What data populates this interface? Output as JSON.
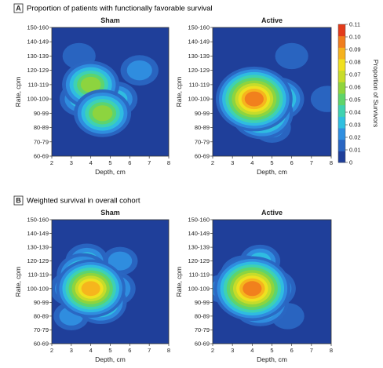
{
  "panels": [
    {
      "letter": "A",
      "title": "Proportion of patients with functionally favorable survival"
    },
    {
      "letter": "B",
      "title": "Weighted survival in overall cohort"
    }
  ],
  "colorbar": {
    "label": "Proportion of Survivors",
    "ticks": [
      "0.11",
      "0.10",
      "0.09",
      "0.08",
      "0.07",
      "0.06",
      "0.05",
      "0.04",
      "0.03",
      "0.02",
      "0.01",
      "0"
    ],
    "colors": [
      "#1f3f9a",
      "#2a66c2",
      "#2f8fe0",
      "#2fbfe0",
      "#3fd2b0",
      "#5fd46a",
      "#8fd43c",
      "#c8dc2a",
      "#f0e020",
      "#f5b21e",
      "#f07d1e",
      "#e33b1a"
    ]
  },
  "chart_data": [
    {
      "type": "heatmap",
      "title": "Sham",
      "xlabel": "Depth, cm",
      "ylabel": "Rate, cpm",
      "x_ticks": [
        "2",
        "3",
        "4",
        "5",
        "6",
        "7",
        "8"
      ],
      "y_ticks": [
        "150-160",
        "140-149",
        "130-139",
        "120-129",
        "110-119",
        "100-109",
        "90-99",
        "80-89",
        "70-79",
        "60-69"
      ],
      "xlim": [
        2,
        8
      ],
      "zlim": [
        0,
        0.11
      ],
      "hotspots": [
        {
          "depth": 4.0,
          "rate": "110-119",
          "value": 0.06
        },
        {
          "depth": 4.6,
          "rate": "90-99",
          "value": 0.06
        },
        {
          "depth": 3.5,
          "rate": "100-109",
          "value": 0.03
        },
        {
          "depth": 5.3,
          "rate": "100-109",
          "value": 0.03
        },
        {
          "depth": 6.5,
          "rate": "120-129",
          "value": 0.02
        },
        {
          "depth": 3.4,
          "rate": "130-139",
          "value": 0.01
        }
      ]
    },
    {
      "type": "heatmap",
      "title": "Active",
      "xlabel": "Depth, cm",
      "ylabel": "Rate, cpm",
      "x_ticks": [
        "2",
        "3",
        "4",
        "5",
        "6",
        "7",
        "8"
      ],
      "y_ticks": [
        "150-160",
        "140-149",
        "130-139",
        "120-129",
        "110-119",
        "100-109",
        "90-99",
        "80-89",
        "70-79",
        "60-69"
      ],
      "xlim": [
        2,
        8
      ],
      "zlim": [
        0,
        0.11
      ],
      "hotspots": [
        {
          "depth": 4.1,
          "rate": "100-109",
          "value": 0.1
        },
        {
          "depth": 4.5,
          "rate": "90-99",
          "value": 0.07
        },
        {
          "depth": 5.3,
          "rate": "100-109",
          "value": 0.05
        },
        {
          "depth": 3.3,
          "rate": "100-109",
          "value": 0.03
        },
        {
          "depth": 4.0,
          "rate": "110-119",
          "value": 0.03
        },
        {
          "depth": 5.0,
          "rate": "80-89",
          "value": 0.02
        },
        {
          "depth": 6.0,
          "rate": "130-139",
          "value": 0.01
        },
        {
          "depth": 7.8,
          "rate": "100-109",
          "value": 0.01
        }
      ]
    },
    {
      "type": "heatmap",
      "title": "Sham",
      "xlabel": "Depth, cm",
      "ylabel": "Rate, cpm",
      "x_ticks": [
        "2",
        "3",
        "4",
        "5",
        "6",
        "7",
        "8"
      ],
      "y_ticks": [
        "150-160",
        "140-149",
        "130-139",
        "120-129",
        "110-119",
        "100-109",
        "90-99",
        "80-89",
        "70-79",
        "60-69"
      ],
      "xlim": [
        2,
        8
      ],
      "zlim": [
        0,
        0.11
      ],
      "hotspots": [
        {
          "depth": 4.0,
          "rate": "100-109",
          "value": 0.085
        },
        {
          "depth": 3.6,
          "rate": "110-119",
          "value": 0.05
        },
        {
          "depth": 4.5,
          "rate": "90-99",
          "value": 0.05
        },
        {
          "depth": 3.0,
          "rate": "100-109",
          "value": 0.03
        },
        {
          "depth": 5.2,
          "rate": "100-109",
          "value": 0.03
        },
        {
          "depth": 3.8,
          "rate": "120-129",
          "value": 0.03
        },
        {
          "depth": 3.0,
          "rate": "80-89",
          "value": 0.015
        },
        {
          "depth": 5.5,
          "rate": "120-129",
          "value": 0.015
        }
      ]
    },
    {
      "type": "heatmap",
      "title": "Active",
      "xlabel": "Depth, cm",
      "ylabel": "Rate, cpm",
      "x_ticks": [
        "2",
        "3",
        "4",
        "5",
        "6",
        "7",
        "8"
      ],
      "y_ticks": [
        "150-160",
        "140-149",
        "130-139",
        "120-129",
        "110-119",
        "100-109",
        "90-99",
        "80-89",
        "70-79",
        "60-69"
      ],
      "xlim": [
        2,
        8
      ],
      "zlim": [
        0,
        0.11
      ],
      "hotspots": [
        {
          "depth": 4.0,
          "rate": "100-109",
          "value": 0.1
        },
        {
          "depth": 4.4,
          "rate": "90-99",
          "value": 0.06
        },
        {
          "depth": 3.6,
          "rate": "110-119",
          "value": 0.04
        },
        {
          "depth": 5.0,
          "rate": "100-109",
          "value": 0.04
        },
        {
          "depth": 4.4,
          "rate": "120-129",
          "value": 0.025
        },
        {
          "depth": 2.5,
          "rate": "100-109",
          "value": 0.015
        },
        {
          "depth": 5.8,
          "rate": "80-89",
          "value": 0.01
        }
      ]
    }
  ]
}
